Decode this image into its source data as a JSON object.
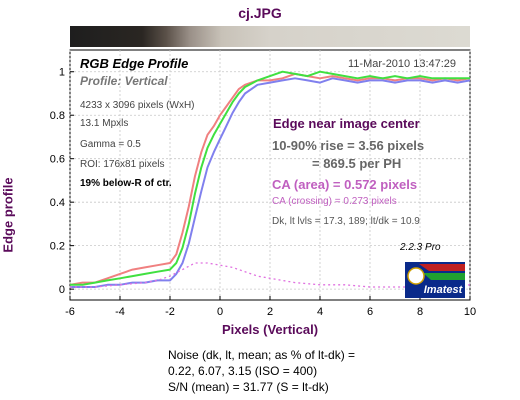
{
  "figure": {
    "filename": "cj.JPG",
    "title": "RGB Edge Profile",
    "subtitle": "Profile: Vertical",
    "date": "11-Mar-2010 13:47:29",
    "info": {
      "dimensions": "4233 x 3096 pixels (WxH)",
      "megapixels": "13.1 Mpxls",
      "gamma": "Gamma = 0.5",
      "roi": "ROI: 176x81 pixels",
      "location": "19% below-R of ctr."
    },
    "results": {
      "edge_location": "Edge near image center",
      "rise": "10-90% rise = 3.56 pixels",
      "per_ph": "= 869.5 per PH",
      "ca_area": "CA (area) = 0.572 pixels",
      "ca_crossing": "CA (crossing) = 0.273 pixels",
      "levels": "Dk, lt lvls = 17.3, 189;  lt/dk = 10.9"
    },
    "version": "2.2.3  Pro",
    "logo_text": "Imatest",
    "noise": {
      "line1": "Noise (dk, lt, mean; as % of lt-dk) =",
      "line2": "0.22,  6.07,  3.15  (ISO =  400)",
      "line3": "S/N (mean) = 31.77  (S = lt-dk)"
    }
  },
  "colors": {
    "red": "#f08080",
    "green": "#40e040",
    "blue": "#8080ee",
    "ca": "#e070e0",
    "title": "#5a0a5a",
    "grid": "#c8c8c8"
  },
  "chart_data": {
    "type": "line",
    "xlabel": "Pixels (Vertical)",
    "ylabel": "Edge profile",
    "xlim": [
      -6,
      10
    ],
    "ylim": [
      -0.05,
      1.1
    ],
    "xticks": [
      -6,
      -4,
      -2,
      0,
      2,
      4,
      6,
      8,
      10
    ],
    "yticks": [
      0,
      0.2,
      0.4,
      0.6,
      0.8,
      1
    ],
    "grid": true,
    "series": [
      {
        "color_key": "red",
        "x": [
          -6,
          -5.5,
          -5,
          -4.5,
          -4,
          -3.5,
          -3,
          -2.5,
          -2,
          -1.75,
          -1.5,
          -1.25,
          -1,
          -0.75,
          -0.5,
          -0.25,
          0,
          0.25,
          0.5,
          0.75,
          1,
          1.5,
          2,
          2.5,
          3,
          3.5,
          4,
          4.5,
          5,
          5.5,
          6,
          6.5,
          7,
          7.5,
          8,
          8.5,
          9,
          9.5,
          10
        ],
        "y": [
          0.02,
          0.03,
          0.03,
          0.05,
          0.07,
          0.09,
          0.1,
          0.11,
          0.12,
          0.16,
          0.26,
          0.38,
          0.52,
          0.63,
          0.71,
          0.75,
          0.8,
          0.84,
          0.88,
          0.92,
          0.94,
          0.96,
          0.96,
          0.97,
          0.99,
          0.98,
          0.97,
          0.98,
          0.97,
          0.96,
          0.97,
          0.97,
          0.96,
          0.97,
          0.97,
          0.96,
          0.97,
          0.96,
          0.97
        ]
      },
      {
        "color_key": "green",
        "x": [
          -6,
          -5.5,
          -5,
          -4.5,
          -4,
          -3.5,
          -3,
          -2.5,
          -2,
          -1.75,
          -1.5,
          -1.25,
          -1,
          -0.75,
          -0.5,
          -0.25,
          0,
          0.25,
          0.5,
          0.75,
          1,
          1.5,
          2,
          2.5,
          3,
          3.5,
          4,
          4.5,
          5,
          5.5,
          6,
          6.5,
          7,
          7.5,
          8,
          8.5,
          9,
          9.5,
          10
        ],
        "y": [
          0.02,
          0.02,
          0.03,
          0.04,
          0.05,
          0.06,
          0.07,
          0.08,
          0.09,
          0.12,
          0.19,
          0.3,
          0.44,
          0.56,
          0.65,
          0.71,
          0.76,
          0.81,
          0.86,
          0.9,
          0.93,
          0.96,
          0.98,
          1.0,
          0.99,
          0.98,
          1.0,
          0.99,
          0.98,
          0.97,
          0.98,
          0.97,
          0.98,
          0.97,
          0.98,
          0.97,
          0.97,
          0.97,
          0.97
        ]
      },
      {
        "color_key": "blue",
        "x": [
          -6,
          -5.5,
          -5,
          -4.5,
          -4,
          -3.5,
          -3,
          -2.5,
          -2,
          -1.75,
          -1.5,
          -1.25,
          -1,
          -0.75,
          -0.5,
          -0.25,
          0,
          0.25,
          0.5,
          0.75,
          1,
          1.5,
          2,
          2.5,
          3,
          3.5,
          4,
          4.5,
          5,
          5.5,
          6,
          6.5,
          7,
          7.5,
          8,
          8.5,
          9,
          9.5,
          10
        ],
        "y": [
          0.01,
          0.01,
          0.01,
          0.02,
          0.02,
          0.03,
          0.03,
          0.04,
          0.04,
          0.07,
          0.12,
          0.21,
          0.33,
          0.45,
          0.56,
          0.63,
          0.69,
          0.75,
          0.81,
          0.86,
          0.9,
          0.94,
          0.95,
          0.96,
          0.97,
          0.96,
          0.95,
          0.97,
          0.96,
          0.95,
          0.96,
          0.96,
          0.95,
          0.96,
          0.96,
          0.95,
          0.96,
          0.95,
          0.96
        ]
      },
      {
        "color_key": "ca",
        "dashed": true,
        "x": [
          -6,
          -5,
          -4,
          -3,
          -2.5,
          -2,
          -1.5,
          -1,
          -0.5,
          0,
          0.5,
          1,
          1.5,
          2,
          3,
          4,
          5,
          6,
          7,
          8,
          9,
          10
        ],
        "y": [
          0.01,
          0.01,
          0.02,
          0.03,
          0.04,
          0.06,
          0.09,
          0.12,
          0.12,
          0.11,
          0.1,
          0.08,
          0.06,
          0.05,
          0.03,
          0.02,
          0.02,
          0.01,
          0.01,
          0.01,
          0.01,
          0.02
        ]
      }
    ]
  }
}
